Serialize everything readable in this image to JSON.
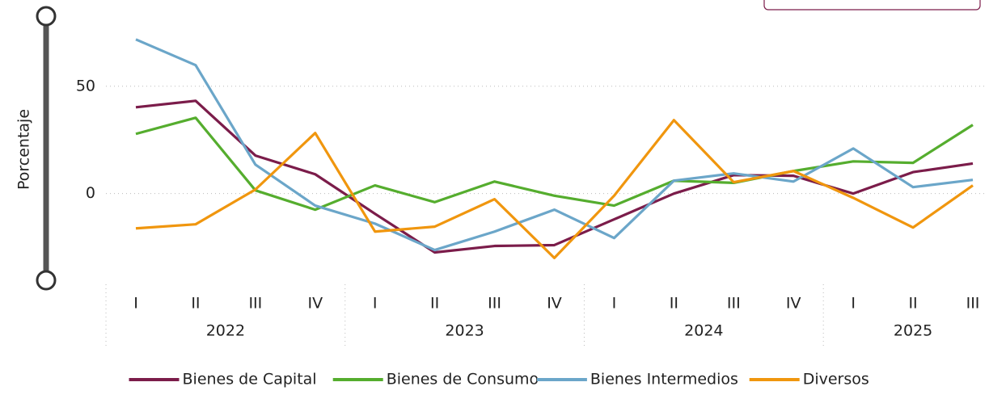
{
  "chart_data": {
    "type": "line",
    "y_label": "Porcentaje",
    "categories": [
      "I",
      "II",
      "III",
      "IV",
      "I",
      "II",
      "III",
      "IV",
      "I",
      "II",
      "III",
      "IV",
      "I",
      "II",
      "III"
    ],
    "years": [
      "2022",
      "2022",
      "2022",
      "2022",
      "2023",
      "2023",
      "2023",
      "2023",
      "2024",
      "2024",
      "2024",
      "2024",
      "2025",
      "2025",
      "2025"
    ],
    "ylim": [
      -40,
      80
    ],
    "yticks": [
      0,
      50
    ],
    "grid": true,
    "legend": "bottom",
    "series": [
      {
        "name": "Bienes de Capital",
        "color": "#7b1c4a",
        "values": [
          40.2,
          43.2,
          17.7,
          9,
          -9.4,
          -27.4,
          -24.4,
          -24,
          -12,
          0,
          8.6,
          8.3,
          0,
          10,
          14
        ]
      },
      {
        "name": "Bienes de Consumo",
        "color": "#55ad2e",
        "values": [
          27.8,
          35.3,
          1.5,
          -7.5,
          3.8,
          -4,
          5.6,
          -1,
          -5.6,
          6,
          5,
          10.5,
          15,
          14.3,
          32
        ]
      },
      {
        "name": "Bienes Intermedios",
        "color": "#6ba6c9",
        "values": [
          71.8,
          59.8,
          13.5,
          -5.6,
          -14,
          -26.3,
          -17.7,
          -7.5,
          -20.7,
          6,
          9.4,
          5.6,
          21,
          3,
          6.4
        ]
      },
      {
        "name": "Diversos",
        "color": "#f0960e",
        "values": [
          -16.2,
          -14.3,
          1.9,
          28.2,
          -17.7,
          -15.4,
          -2.6,
          -30,
          -1,
          34.2,
          5.3,
          10.5,
          -2,
          -15.8,
          3.8
        ]
      }
    ]
  }
}
